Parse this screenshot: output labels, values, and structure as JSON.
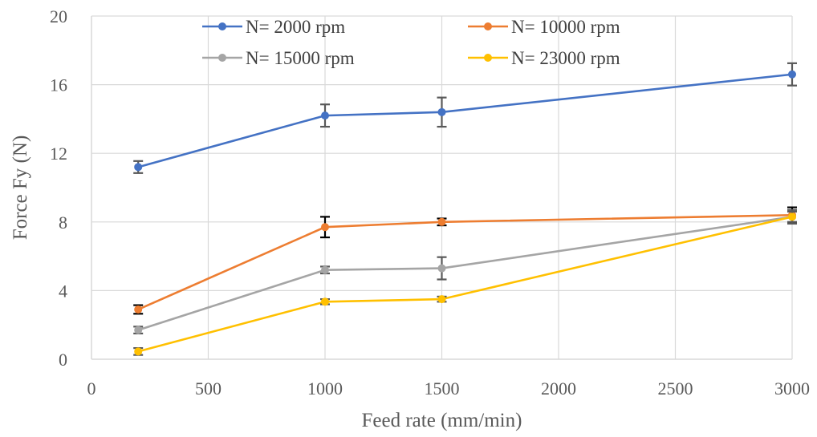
{
  "chart_data": {
    "type": "line",
    "xlabel": "Feed rate (mm/min)",
    "ylabel": "Force Fy (N)",
    "xlim": [
      0,
      3000
    ],
    "ylim": [
      0,
      20
    ],
    "x_ticks": [
      0,
      500,
      1000,
      1500,
      2000,
      2500,
      3000
    ],
    "y_ticks": [
      0,
      4,
      8,
      12,
      16,
      20
    ],
    "grid": true,
    "legend_position": "top",
    "x": [
      200,
      1000,
      1500,
      3000
    ],
    "series": [
      {
        "name": "N= 2000 rpm",
        "color": "#4472C4",
        "error_color": "#595959",
        "values": [
          11.2,
          14.2,
          14.4,
          16.6
        ],
        "errors": [
          0.35,
          0.65,
          0.85,
          0.65
        ]
      },
      {
        "name": "N= 10000 rpm",
        "color": "#ED7D31",
        "error_color": "#000000",
        "values": [
          2.9,
          7.7,
          8.0,
          8.4
        ],
        "errors": [
          0.25,
          0.6,
          0.2,
          0.45
        ]
      },
      {
        "name": "N= 15000 rpm",
        "color": "#A5A5A5",
        "error_color": "#595959",
        "values": [
          1.7,
          5.2,
          5.3,
          8.3
        ],
        "errors": [
          0.2,
          0.2,
          0.65,
          0.4
        ]
      },
      {
        "name": "N= 23000 rpm",
        "color": "#FFC000",
        "error_color": "#595959",
        "values": [
          0.45,
          3.35,
          3.5,
          8.3
        ],
        "errors": [
          0.2,
          0.15,
          0.15,
          0.3
        ]
      }
    ]
  }
}
